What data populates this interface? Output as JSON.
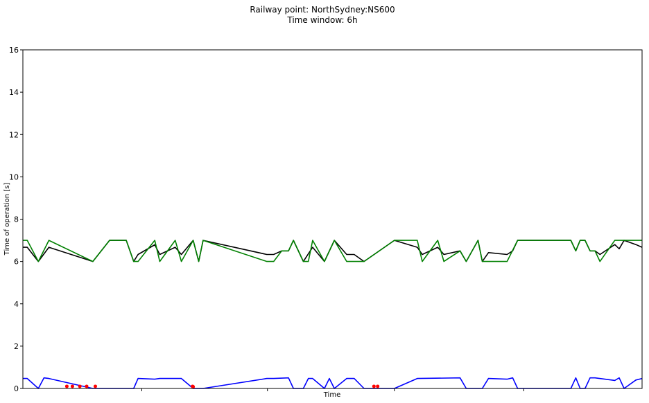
{
  "chart_data": {
    "type": "line",
    "title_line1": "Railway point: NorthSydney:NS600",
    "title_line2": "Time window: 6h",
    "xlabel": "Time",
    "ylabel": "Time of operation [s]",
    "ylim": [
      0,
      16
    ],
    "yticks": [
      "0",
      "2",
      "4",
      "6",
      "8",
      "10",
      "12",
      "14",
      "16"
    ],
    "xlim": [
      0,
      100
    ],
    "x_tick_positions": [
      19.2,
      39.5,
      60.0,
      80.9
    ],
    "grid": false,
    "colors": {
      "black": "#000000",
      "green": "#008000",
      "blue": "#0000ff",
      "red": "#ff0000"
    },
    "series": [
      {
        "color": "black",
        "points": [
          [
            0,
            6.67
          ],
          [
            0.7,
            6.67
          ],
          [
            2.5,
            6.0
          ],
          [
            4.2,
            6.67
          ],
          [
            11.3,
            6.0
          ],
          [
            14,
            7.0
          ],
          [
            16.7,
            7.0
          ],
          [
            17.9,
            6.0
          ],
          [
            18.6,
            6.33
          ],
          [
            21.3,
            6.79
          ],
          [
            22.1,
            6.33
          ],
          [
            24.6,
            6.67
          ],
          [
            25.6,
            6.33
          ],
          [
            27.5,
            7.0
          ],
          [
            28.4,
            6.0
          ],
          [
            29.1,
            7.0
          ],
          [
            39.4,
            6.33
          ],
          [
            40.5,
            6.33
          ],
          [
            41.8,
            6.5
          ],
          [
            42.9,
            6.5
          ],
          [
            43.7,
            7.0
          ],
          [
            45.3,
            6.0
          ],
          [
            46.8,
            6.67
          ],
          [
            48.7,
            6.0
          ],
          [
            50.3,
            7.0
          ],
          [
            52.3,
            6.33
          ],
          [
            53.5,
            6.33
          ],
          [
            55.1,
            6.0
          ],
          [
            60.0,
            7.0
          ],
          [
            63.7,
            6.67
          ],
          [
            64.5,
            6.33
          ],
          [
            67.0,
            6.67
          ],
          [
            68.0,
            6.33
          ],
          [
            70.6,
            6.5
          ],
          [
            71.6,
            6.0
          ],
          [
            73.5,
            7.0
          ],
          [
            74.2,
            6.0
          ],
          [
            75.2,
            6.42
          ],
          [
            78.2,
            6.33
          ],
          [
            79.1,
            6.5
          ],
          [
            79.9,
            7.0
          ],
          [
            88.5,
            7.0
          ],
          [
            89.3,
            6.5
          ],
          [
            90.0,
            7.0
          ],
          [
            90.8,
            7.0
          ],
          [
            91.6,
            6.5
          ],
          [
            92.4,
            6.5
          ],
          [
            93.2,
            6.33
          ],
          [
            95.6,
            6.8
          ],
          [
            96.3,
            6.6
          ],
          [
            97.1,
            7.0
          ],
          [
            99.0,
            6.8
          ],
          [
            100,
            6.67
          ]
        ]
      },
      {
        "color": "green",
        "points": [
          [
            0,
            7.0
          ],
          [
            0.7,
            7.0
          ],
          [
            2.5,
            6.0
          ],
          [
            4.2,
            7.0
          ],
          [
            11.3,
            6.0
          ],
          [
            14,
            7.0
          ],
          [
            16.7,
            7.0
          ],
          [
            17.9,
            6.0
          ],
          [
            18.6,
            6.0
          ],
          [
            21.3,
            7.0
          ],
          [
            22.1,
            6.0
          ],
          [
            24.6,
            7.0
          ],
          [
            25.6,
            6.0
          ],
          [
            27.5,
            7.0
          ],
          [
            28.4,
            6.0
          ],
          [
            29.1,
            7.0
          ],
          [
            39.4,
            6.0
          ],
          [
            40.5,
            6.0
          ],
          [
            41.8,
            6.5
          ],
          [
            42.9,
            6.5
          ],
          [
            43.7,
            7.0
          ],
          [
            45.3,
            6.0
          ],
          [
            46.1,
            6.0
          ],
          [
            46.8,
            7.0
          ],
          [
            48.7,
            6.0
          ],
          [
            50.3,
            7.0
          ],
          [
            52.3,
            6.0
          ],
          [
            53.5,
            6.0
          ],
          [
            55.1,
            6.0
          ],
          [
            60.0,
            7.0
          ],
          [
            63.7,
            7.0
          ],
          [
            64.5,
            6.0
          ],
          [
            67.0,
            7.0
          ],
          [
            68.0,
            6.0
          ],
          [
            70.6,
            6.5
          ],
          [
            71.6,
            6.0
          ],
          [
            73.5,
            7.0
          ],
          [
            74.2,
            6.0
          ],
          [
            75.2,
            6.0
          ],
          [
            78.2,
            6.0
          ],
          [
            79.9,
            7.0
          ],
          [
            88.5,
            7.0
          ],
          [
            89.3,
            6.5
          ],
          [
            90.0,
            7.0
          ],
          [
            90.8,
            7.0
          ],
          [
            91.6,
            6.5
          ],
          [
            92.4,
            6.5
          ],
          [
            93.2,
            6.0
          ],
          [
            95.6,
            7.0
          ],
          [
            97.1,
            7.0
          ],
          [
            100,
            7.0
          ]
        ]
      },
      {
        "color": "blue",
        "points": [
          [
            0,
            0.47
          ],
          [
            0.7,
            0.47
          ],
          [
            2.5,
            0.0
          ],
          [
            3.4,
            0.5
          ],
          [
            4.2,
            0.47
          ],
          [
            11.3,
            0.0
          ],
          [
            17.9,
            0.0
          ],
          [
            18.6,
            0.47
          ],
          [
            21.3,
            0.44
          ],
          [
            22.1,
            0.47
          ],
          [
            25.6,
            0.47
          ],
          [
            27.5,
            0.0
          ],
          [
            29.1,
            0.0
          ],
          [
            39.4,
            0.47
          ],
          [
            40.5,
            0.47
          ],
          [
            42.9,
            0.5
          ],
          [
            43.7,
            0.0
          ],
          [
            45.3,
            0.0
          ],
          [
            46.1,
            0.47
          ],
          [
            46.8,
            0.47
          ],
          [
            48.7,
            0.0
          ],
          [
            49.5,
            0.47
          ],
          [
            50.3,
            0.0
          ],
          [
            52.3,
            0.47
          ],
          [
            53.5,
            0.47
          ],
          [
            55.1,
            0.0
          ],
          [
            60.0,
            0.0
          ],
          [
            63.7,
            0.47
          ],
          [
            70.6,
            0.5
          ],
          [
            71.6,
            0.0
          ],
          [
            74.2,
            0.0
          ],
          [
            75.2,
            0.47
          ],
          [
            78.2,
            0.44
          ],
          [
            79.1,
            0.5
          ],
          [
            79.9,
            0.0
          ],
          [
            88.5,
            0.0
          ],
          [
            89.3,
            0.5
          ],
          [
            90.0,
            0.0
          ],
          [
            90.8,
            0.0
          ],
          [
            91.6,
            0.5
          ],
          [
            92.4,
            0.5
          ],
          [
            95.6,
            0.38
          ],
          [
            96.3,
            0.5
          ],
          [
            97.1,
            0.0
          ],
          [
            99.0,
            0.4
          ],
          [
            100,
            0.47
          ]
        ]
      },
      {
        "color": "red",
        "style": "markers",
        "points": [
          [
            7.1,
            0.1
          ],
          [
            8.0,
            0.1
          ],
          [
            9.2,
            0.1
          ],
          [
            10.3,
            0.1
          ],
          [
            11.7,
            0.1
          ],
          [
            27.4,
            0.1
          ],
          [
            27.5,
            0.08
          ],
          [
            56.7,
            0.1
          ],
          [
            57.3,
            0.1
          ]
        ]
      }
    ]
  }
}
